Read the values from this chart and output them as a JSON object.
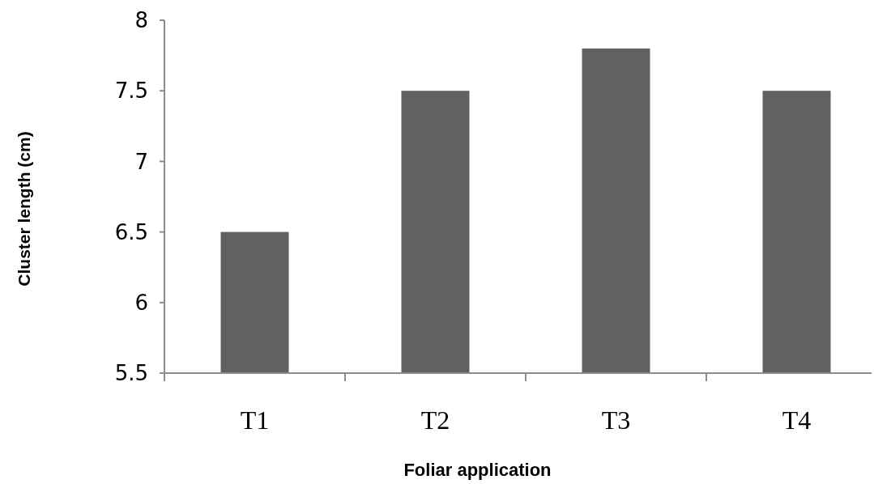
{
  "chart_data": {
    "type": "bar",
    "xlabel": "Foliar application",
    "ylabel": "Cluster length (cm)",
    "categories": [
      "T1",
      "T2",
      "T3",
      "T4"
    ],
    "values": [
      6.5,
      7.5,
      7.8,
      7.5
    ],
    "color": "#616161",
    "ylim": [
      5.5,
      8
    ],
    "yticks": [
      5.5,
      6,
      6.5,
      7,
      7.5,
      8
    ],
    "grid": false
  }
}
